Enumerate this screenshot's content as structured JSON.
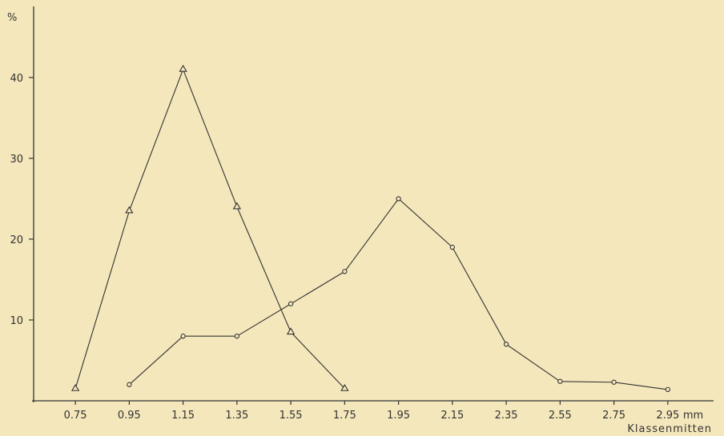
{
  "colors": {
    "background": "#f4e7bb",
    "ink": "#333333"
  },
  "chart_data": {
    "type": "line",
    "xlabel": "Klassenmitten",
    "x_unit": "mm",
    "ylabel": "%",
    "x_ticks": [
      "0.75",
      "0.95",
      "1.15",
      "1.35",
      "1.55",
      "1.75",
      "1.95",
      "2.15",
      "2.35",
      "2.55",
      "2.75",
      "2.95"
    ],
    "y_ticks": [
      "10",
      "20",
      "30",
      "40"
    ],
    "xlim": [
      0.595,
      3.12
    ],
    "ylim": [
      0,
      48.5
    ],
    "grid": false,
    "series": [
      {
        "marker": "triangle",
        "x": [
          0.75,
          0.95,
          1.15,
          1.35,
          1.55,
          1.75
        ],
        "values": [
          1.5,
          23.5,
          41,
          24,
          8.5,
          1.5
        ]
      },
      {
        "marker": "circle",
        "x": [
          0.95,
          1.15,
          1.35,
          1.55,
          1.75,
          1.95,
          2.15,
          2.35,
          2.55,
          2.75,
          2.95
        ],
        "values": [
          2,
          8,
          8,
          12,
          16,
          25,
          19,
          7,
          2.4,
          2.3,
          1.4
        ]
      }
    ]
  }
}
